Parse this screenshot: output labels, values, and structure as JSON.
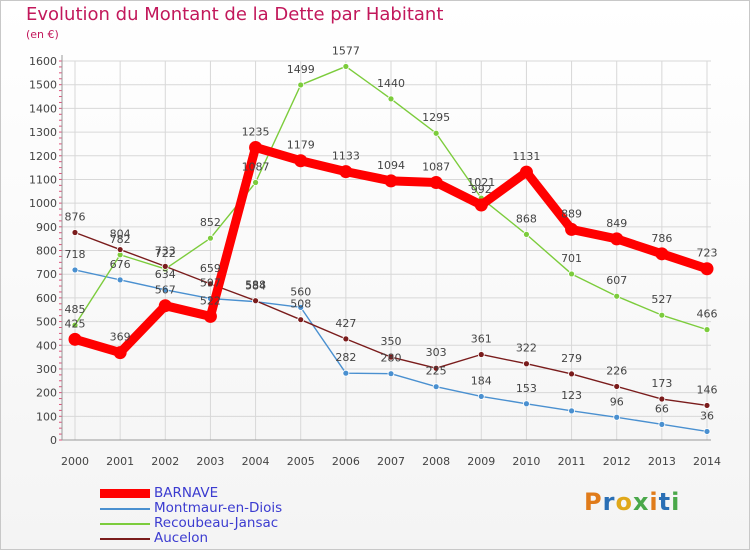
{
  "title": "Evolution du Montant de la Dette par Habitant",
  "subtitle": "(en €)",
  "logo": {
    "text": "Proxiti",
    "colors": [
      "#e07b1a",
      "#2a6fb5",
      "#e0a81a",
      "#4aa84a",
      "#e07b1a",
      "#2a6fb5",
      "#4aa84a"
    ]
  },
  "colors": {
    "title": "#c2185b",
    "legend_text": "#3b3bd0",
    "grid": "#d8d8d8",
    "axis": "#999999",
    "tick_mark": "#e0507a"
  },
  "chart_data": {
    "type": "line",
    "title": "Evolution du Montant de la Dette par Habitant",
    "subtitle": "(en €)",
    "xlabel": "",
    "ylabel": "",
    "ylim": [
      0,
      1600
    ],
    "yticks": [
      0,
      100,
      200,
      300,
      400,
      500,
      600,
      700,
      800,
      900,
      1000,
      1100,
      1200,
      1300,
      1400,
      1500,
      1600
    ],
    "x": [
      "2000",
      "2001",
      "2002",
      "2003",
      "2004",
      "2005",
      "2006",
      "2007",
      "2008",
      "2009",
      "2010",
      "2011",
      "2012",
      "2013",
      "2014"
    ],
    "grid": true,
    "legend_position": "bottom-left",
    "series": [
      {
        "name": "BARNAVE",
        "color": "#ff0000",
        "emphasis": true,
        "values": [
          425,
          369,
          567,
          522,
          1235,
          1179,
          1133,
          1094,
          1087,
          992,
          1131,
          889,
          849,
          786,
          723
        ]
      },
      {
        "name": "Montmaur-en-Diois",
        "color": "#4a90d0",
        "values": [
          718,
          676,
          634,
          597,
          584,
          560,
          282,
          280,
          225,
          184,
          153,
          123,
          96,
          66,
          36
        ]
      },
      {
        "name": "Recoubeau-Jansac",
        "color": "#7ccc3c",
        "values": [
          485,
          782,
          722,
          852,
          1087,
          1499,
          1577,
          1440,
          1295,
          1021,
          868,
          701,
          607,
          527,
          466
        ]
      },
      {
        "name": "Aucelon",
        "color": "#7a1c1c",
        "values": [
          876,
          804,
          733,
          659,
          588,
          508,
          427,
          350,
          303,
          361,
          322,
          279,
          226,
          173,
          146
        ]
      }
    ]
  }
}
